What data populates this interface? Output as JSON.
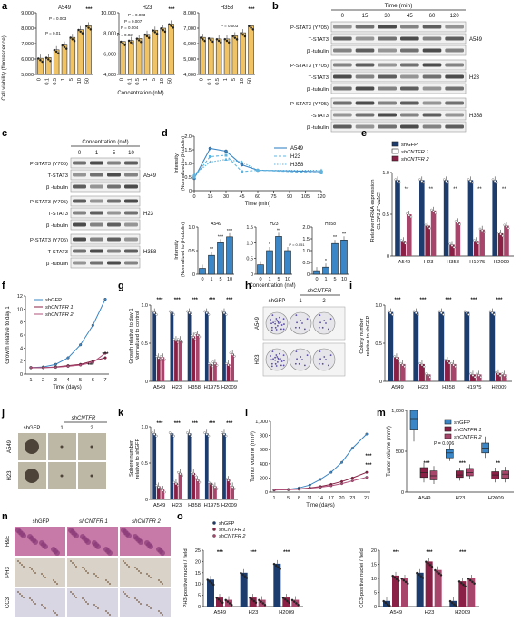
{
  "colors": {
    "yellow": "#f0c466",
    "blue": "#3a86c6",
    "dark_navy": "#1d3c6e",
    "maroon": "#8a2045",
    "light_blue": "#5fb5e0",
    "he_purple": "#c77aa8",
    "ihc_bg": "#d8d6e2",
    "blot_bg": "#f1f1f1",
    "band": "#3a3a3a",
    "plate_bg": "#e6e6ea",
    "colony": "#5a4aa0",
    "sphere_bg": "#bdb8a6"
  },
  "panels": {
    "a": "a",
    "b": "b",
    "c": "c",
    "d": "d",
    "e": "e",
    "f": "f",
    "g": "g",
    "h": "h",
    "i": "i",
    "j": "j",
    "k": "k",
    "l": "l",
    "m": "m",
    "n": "n",
    "o": "o"
  },
  "panel_a": {
    "ylabel": "Cell viability (fluorescence)",
    "xlabel": "Concentration (nM)",
    "categories": [
      "0",
      "0.1",
      "0.5",
      "1",
      "5",
      "10",
      "50"
    ],
    "plots": [
      {
        "title": "A549",
        "yticks": [
          "5,000",
          "6,000",
          "7,000",
          "8,000",
          "9,000"
        ],
        "ylim": [
          5000,
          9000
        ],
        "values": [
          6050,
          6100,
          6600,
          6900,
          7400,
          7900,
          8150
        ],
        "p1": "P = 0.01",
        "p2": "P = 0.003",
        "sig": "***"
      },
      {
        "title": "H23",
        "yticks": [
          "4,000",
          "6,000",
          "8,000",
          "10,000"
        ],
        "ylim": [
          4000,
          10000
        ],
        "values": [
          7200,
          7300,
          7500,
          7900,
          8300,
          8500,
          8900
        ],
        "p1": "P = 0.02",
        "p2": "P = 0.004",
        "p3": "P = 0.007",
        "p4": "P = 0.003",
        "sig": "***"
      },
      {
        "title": "H358",
        "yticks": [
          "4,000",
          "5,000",
          "6,000",
          "7,000",
          "8,000"
        ],
        "ylim": [
          4000,
          8000
        ],
        "values": [
          6400,
          6350,
          6300,
          6300,
          6500,
          6700,
          7150
        ],
        "p1": "P = 0.003",
        "sig": "***"
      }
    ]
  },
  "panel_b": {
    "time_label": "Time (min)",
    "times": [
      "0",
      "15",
      "30",
      "45",
      "60",
      "120"
    ],
    "rows": [
      "P-STAT3 (Y705)",
      "T-STAT3",
      "β -tubulin"
    ],
    "groups": [
      "A549",
      "H23",
      "H358"
    ]
  },
  "panel_c": {
    "conc_label": "Concentration (nM)",
    "concs": [
      "0",
      "1",
      "5",
      "10"
    ],
    "rows": [
      "P-STAT3 (Y705)",
      "T-STAT3",
      "β -tubulin"
    ],
    "groups": [
      "A549",
      "H23",
      "H358"
    ]
  },
  "panel_d_line": {
    "ylabel1": "Intensity",
    "ylabel2": "(Normalized to β-tubulin)",
    "xlabel": "Time (min)",
    "x": [
      0,
      15,
      30,
      45,
      60,
      120
    ],
    "xticks": [
      "0",
      "15",
      "30",
      "45",
      "60",
      "75",
      "90",
      "105",
      "120"
    ],
    "yticks": [
      "0",
      "0.5",
      "1.0",
      "1.5",
      "2.0"
    ],
    "ylim": [
      0,
      2.0
    ],
    "series": [
      {
        "name": "A549",
        "values": [
          0.45,
          1.55,
          1.45,
          0.95,
          0.75,
          0.7
        ]
      },
      {
        "name": "H23",
        "values": [
          0.5,
          1.25,
          1.3,
          0.7,
          0.75,
          0.65
        ]
      },
      {
        "name": "H358",
        "values": [
          0.6,
          1.05,
          1.15,
          1.05,
          0.75,
          0.75
        ]
      }
    ]
  },
  "panel_d_bars": {
    "ylabel1": "Intensity",
    "ylabel2": "(Normalized to β-tubulin)",
    "xlabel": "Concentration (nM)",
    "categories": [
      "0",
      "1",
      "5",
      "10"
    ],
    "plots": [
      {
        "title": "A549",
        "values": [
          0.15,
          0.48,
          0.8,
          0.95
        ],
        "ylim": [
          0,
          1.2
        ],
        "yticks": [
          "0",
          "0.5",
          "1.0"
        ],
        "stars": [
          "",
          "**",
          "***",
          "***"
        ]
      },
      {
        "title": "H23",
        "values": [
          0.3,
          0.75,
          1.2,
          0.75
        ],
        "ylim": [
          0,
          1.5
        ],
        "yticks": [
          "0",
          "0.5",
          "1.0",
          "1.5"
        ],
        "stars": [
          "",
          "*",
          "**",
          "P = 0.051"
        ]
      },
      {
        "title": "H358",
        "values": [
          0.15,
          0.3,
          1.3,
          1.45
        ],
        "ylim": [
          0,
          2.0
        ],
        "yticks": [
          "0",
          "0.5",
          "1.0",
          "1.5",
          "2.0"
        ],
        "stars": [
          "",
          "*",
          "**",
          "**"
        ]
      }
    ]
  },
  "panel_e": {
    "ylabel1": "Relative mRNA expression",
    "ylabel2": "CLCF1",
    "ylabel3": "2^-ΔΔCt",
    "categories": [
      "A549",
      "H23",
      "H358",
      "H1975",
      "H2009"
    ],
    "legend": [
      "shGFP",
      "shCNTFR 1",
      "shCNTFR 2"
    ],
    "yticks": [
      "0",
      "0.5",
      "1.0"
    ],
    "ylim": [
      0,
      1.1
    ],
    "series": [
      [
        1.0,
        1.0,
        1.0,
        1.0,
        1.0
      ],
      [
        0.2,
        0.4,
        0.15,
        0.2,
        0.3
      ],
      [
        0.55,
        0.6,
        0.45,
        0.35,
        0.4
      ]
    ]
  },
  "panel_f": {
    "ylabel": "Growth relative to day 1",
    "xlabel": "Time (days)",
    "x": [
      1,
      2,
      3,
      4,
      5,
      6,
      7
    ],
    "yticks": [
      "0",
      "2",
      "4",
      "6",
      "8",
      "10",
      "12"
    ],
    "ylim": [
      0,
      13
    ],
    "legend": [
      "shGFP",
      "shCNTFR 1",
      "shCNTFR 2"
    ],
    "series": [
      [
        1,
        1.1,
        1.5,
        2.5,
        4.5,
        7.5,
        11.5
      ],
      [
        1,
        1,
        1.1,
        1.3,
        1.5,
        2.0,
        2.5
      ],
      [
        1,
        1,
        1.05,
        1.2,
        1.4,
        1.8,
        3.2
      ]
    ],
    "sig": [
      "***",
      "***"
    ]
  },
  "panel_g": {
    "ylabel1": "Growth relative to day 1",
    "ylabel2": "Normalized to control",
    "categories": [
      "A549",
      "H23",
      "H358",
      "H1975",
      "H2009"
    ],
    "yticks": [
      "0",
      "0.5",
      "1.0"
    ],
    "ylim": [
      0,
      1.1
    ],
    "series": [
      [
        1.0,
        1.0,
        1.0,
        1.0,
        1.0
      ],
      [
        0.35,
        0.6,
        0.65,
        0.25,
        0.25
      ],
      [
        0.35,
        0.6,
        0.68,
        0.27,
        0.4
      ]
    ],
    "sig": "***"
  },
  "panel_h": {
    "header": "shCNTFR",
    "labels": [
      "shGFP",
      "1",
      "2"
    ],
    "rows": [
      "A549",
      "H23"
    ]
  },
  "panel_i": {
    "ylabel1": "Colony number",
    "ylabel2": "relative to shGFP",
    "categories": [
      "A549",
      "H23",
      "H358",
      "H1975",
      "H2009"
    ],
    "yticks": [
      "0",
      "0.5",
      "1.0"
    ],
    "ylim": [
      0,
      1.1
    ],
    "series": [
      [
        1.0,
        1.0,
        1.0,
        1.0,
        1.0
      ],
      [
        0.35,
        0.25,
        0.3,
        0.1,
        0.12
      ],
      [
        0.25,
        0.1,
        0.25,
        0.1,
        0.1
      ]
    ],
    "sig": "***"
  },
  "panel_j": {
    "header": "shCNTFR",
    "labels": [
      "shGFP",
      "1",
      "2"
    ],
    "rows": [
      "A549",
      "H23"
    ]
  },
  "panel_k": {
    "ylabel1": "Sphere number",
    "ylabel2": "relative to shGFP",
    "categories": [
      "A549",
      "H23",
      "H358",
      "H1975",
      "H2009"
    ],
    "yticks": [
      "0",
      "0.5",
      "1.0"
    ],
    "ylim": [
      0,
      1.1
    ],
    "series": [
      [
        1.0,
        1.0,
        1.0,
        1.0,
        1.0
      ],
      [
        0.2,
        0.25,
        0.4,
        0.25,
        0.3
      ],
      [
        0.15,
        0.4,
        0.3,
        0.2,
        0.2
      ]
    ],
    "sig": "***"
  },
  "panel_l": {
    "ylabel": "Tumor volume (mm³)",
    "xlabel": "Time (days)",
    "x": [
      1,
      5,
      8,
      11,
      14,
      17,
      20,
      23,
      27
    ],
    "yticks": [
      "0",
      "200",
      "400",
      "600",
      "800",
      "1,000"
    ],
    "ylim": [
      0,
      1000
    ],
    "series": [
      [
        30,
        40,
        60,
        100,
        180,
        280,
        420,
        620,
        820
      ],
      [
        30,
        35,
        45,
        60,
        80,
        110,
        150,
        200,
        280
      ],
      [
        30,
        35,
        40,
        55,
        70,
        90,
        120,
        160,
        210
      ]
    ],
    "sig": [
      "***",
      "***"
    ]
  },
  "panel_m": {
    "ylabel": "Tumor volume (mm³)",
    "categories": [
      "A549",
      "H23",
      "H2009"
    ],
    "legend": [
      "shGFP",
      "shCNTFR 1",
      "shCNTFR 2"
    ],
    "yticks": [
      "0",
      "500",
      "1,000"
    ],
    "ylim": [
      0,
      1200
    ],
    "boxes": [
      [
        [
          620,
          760,
          900,
          1000,
          1150
        ],
        [
          120,
          180,
          240,
          300,
          360
        ],
        [
          100,
          150,
          200,
          260,
          320
        ]
      ],
      [
        [
          380,
          420,
          480,
          520,
          580
        ],
        [
          140,
          180,
          210,
          260,
          300
        ],
        [
          160,
          200,
          240,
          290,
          340
        ]
      ],
      [
        [
          420,
          480,
          540,
          600,
          680
        ],
        [
          120,
          160,
          210,
          250,
          300
        ],
        [
          120,
          170,
          220,
          260,
          310
        ]
      ]
    ],
    "p": "P = 0.006",
    "sig": [
      "***",
      "***",
      "**"
    ]
  },
  "panel_n": {
    "cols": [
      "shGFP",
      "shCNTFR 1",
      "shCNTFR 2"
    ],
    "rows": [
      "H&E",
      "PH3",
      "CC3"
    ]
  },
  "panel_o": {
    "legend": [
      "shGFP",
      "shCNTFR 1",
      "shCNTFR 2"
    ],
    "categories": [
      "A549",
      "H23",
      "H2009"
    ],
    "left": {
      "ylabel": "PH3-positive nuclei / field",
      "yticks": [
        "0",
        "5",
        "10",
        "15",
        "20",
        "25"
      ],
      "ylim": [
        0,
        25
      ],
      "values": [
        [
          12,
          15,
          19
        ],
        [
          4,
          4,
          4
        ],
        [
          3,
          3,
          3
        ]
      ]
    },
    "right": {
      "ylabel": "CC3-positive nuclei / field",
      "yticks": [
        "0",
        "5",
        "10",
        "15",
        "20"
      ],
      "ylim": [
        0,
        20
      ],
      "values": [
        [
          2,
          12,
          2
        ],
        [
          11,
          16,
          9
        ],
        [
          10,
          13,
          10
        ]
      ]
    },
    "sig": "***"
  }
}
